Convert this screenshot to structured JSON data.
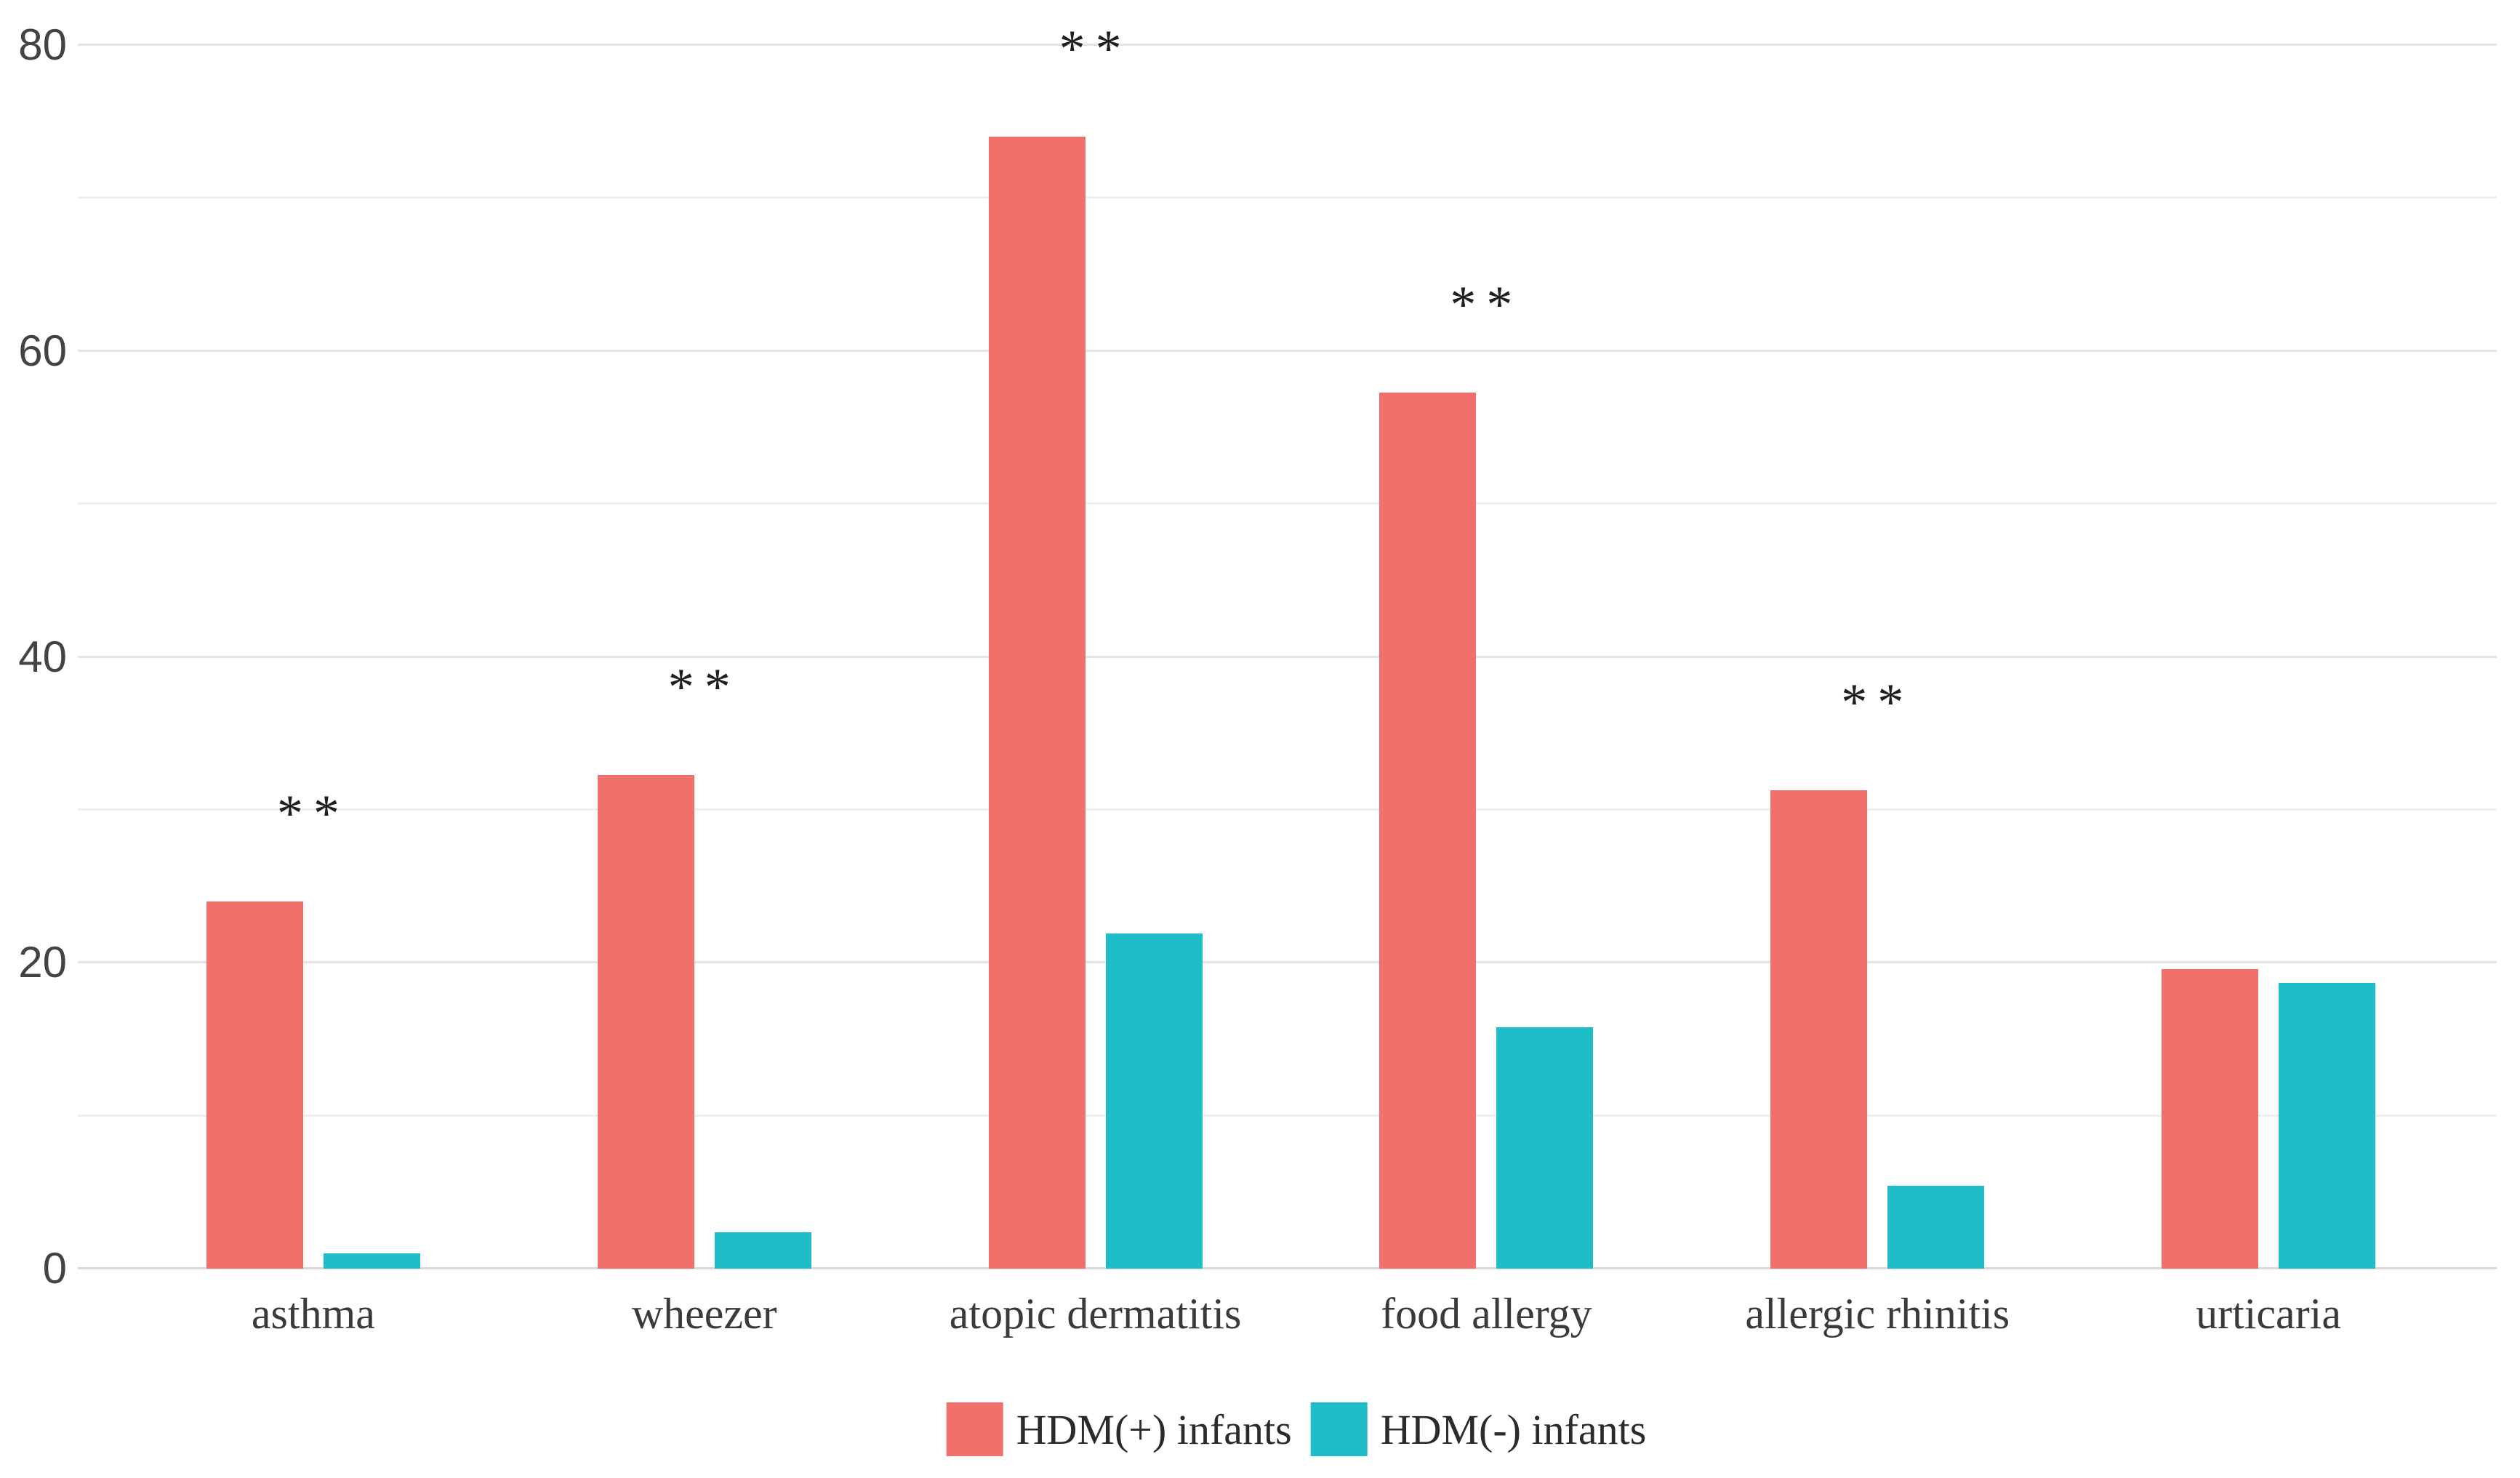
{
  "chart_data": {
    "type": "bar",
    "title": "",
    "xlabel": "",
    "ylabel": "",
    "categories": [
      "asthma",
      "wheezer",
      "atopic dermatitis",
      "food allergy",
      "allergic rhinitis",
      "urticaria"
    ],
    "series": [
      {
        "name": "HDM(+) infants",
        "color": "#f1706b",
        "values": [
          24.0,
          32.3,
          74.0,
          57.3,
          31.3,
          19.6
        ]
      },
      {
        "name": "HDM(-) infants",
        "color": "#1ebdc8",
        "values": [
          1.0,
          2.4,
          21.9,
          15.8,
          5.4,
          18.7
        ]
      }
    ],
    "significance_marks": [
      "**",
      "**",
      "**",
      "**",
      "**",
      ""
    ],
    "ylim": [
      0,
      80
    ],
    "yticks": [
      0,
      20,
      40,
      60,
      80
    ],
    "gridline_step": 10,
    "grid": true,
    "legend_position": "bottom"
  },
  "colors": {
    "background": "#ffffff",
    "gridline_minor": "#efefef",
    "gridline_major": "#e4e4e4",
    "baseline": "#d9d9d9",
    "tick_text": "#434343",
    "label_text": "#3a3a3a",
    "significance_text": "#1f1f1f"
  }
}
